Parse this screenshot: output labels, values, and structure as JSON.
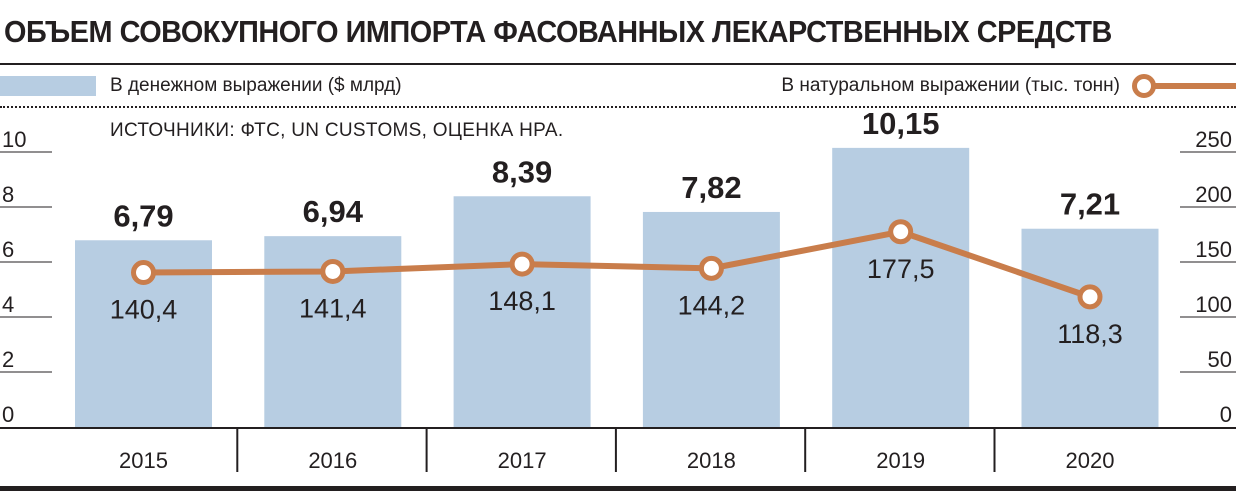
{
  "title": "ОБЪЕМ СОВОКУПНОГО ИМПОРТА ФАСОВАННЫХ ЛЕКАРСТВЕННЫХ СРЕДСТВ",
  "legend": {
    "bars": "В денежном выражении ($ млрд)",
    "line": "В натуральном выражении (тыс. тонн)"
  },
  "source": "ИСТОЧНИКИ: ФТС, UN CUSTOMS, ОЦЕНКА НРА.",
  "colors": {
    "bar": "#b7cde2",
    "line": "#c97d4b",
    "text": "#231f20"
  },
  "chart_data": {
    "type": "bar",
    "categories": [
      "2015",
      "2016",
      "2017",
      "2018",
      "2019",
      "2020"
    ],
    "series": [
      {
        "name": "В денежном выражении ($ млрд)",
        "type": "bar",
        "axis": "left",
        "values": [
          6.79,
          6.94,
          8.39,
          7.82,
          10.15,
          7.21
        ],
        "labels": [
          "6,79",
          "6,94",
          "8,39",
          "7,82",
          "10,15",
          "7,21"
        ]
      },
      {
        "name": "В натуральном выражении (тыс. тонн)",
        "type": "line",
        "axis": "right",
        "values": [
          140.4,
          141.4,
          148.1,
          144.2,
          177.5,
          118.3
        ],
        "labels": [
          "140,4",
          "141,4",
          "148,1",
          "144,2",
          "177,5",
          "118,3"
        ]
      }
    ],
    "y_left": {
      "ylim": [
        0,
        10
      ],
      "ticks": [
        "0",
        "2",
        "4",
        "6",
        "8",
        "10"
      ]
    },
    "y_right": {
      "ylim": [
        0,
        250
      ],
      "ticks": [
        "0",
        "50",
        "100",
        "150",
        "200",
        "250"
      ]
    }
  }
}
